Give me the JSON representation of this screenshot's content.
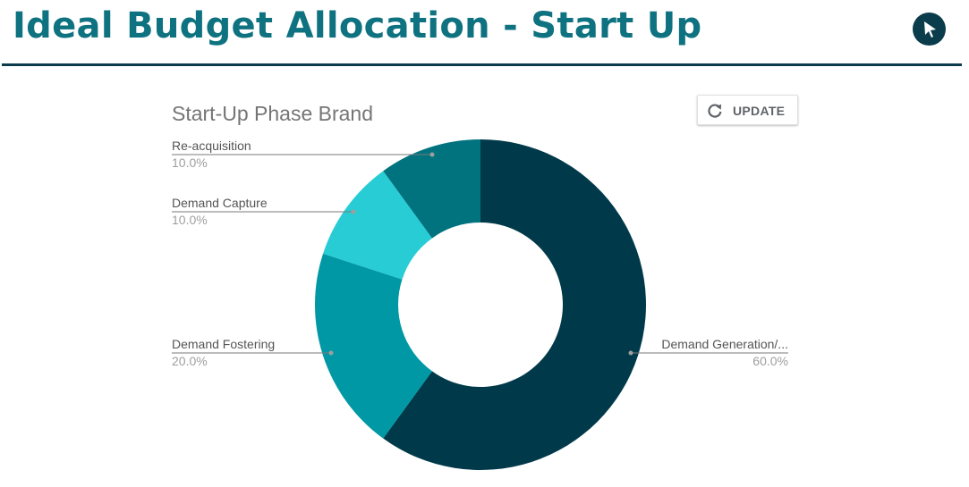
{
  "header": {
    "title": "Ideal Budget Allocation - Start Up",
    "cursor_icon": "cursor-arrow-icon"
  },
  "toolbar": {
    "update_label": "UPDATE",
    "update_icon": "refresh-icon"
  },
  "chart_data": {
    "type": "pie",
    "style": "donut",
    "title": "Start-Up Phase Brand",
    "slices": [
      {
        "label": "Demand Generation/...",
        "value": 60.0,
        "pct_label": "60.0%",
        "color": "#003a4a"
      },
      {
        "label": "Demand Fostering",
        "value": 20.0,
        "pct_label": "20.0%",
        "color": "#0098a5"
      },
      {
        "label": "Demand Capture",
        "value": 10.0,
        "pct_label": "10.0%",
        "color": "#27ccd5"
      },
      {
        "label": "Re-acquisition",
        "value": 10.0,
        "pct_label": "10.0%",
        "color": "#00737f"
      }
    ],
    "legend": "labeled"
  }
}
